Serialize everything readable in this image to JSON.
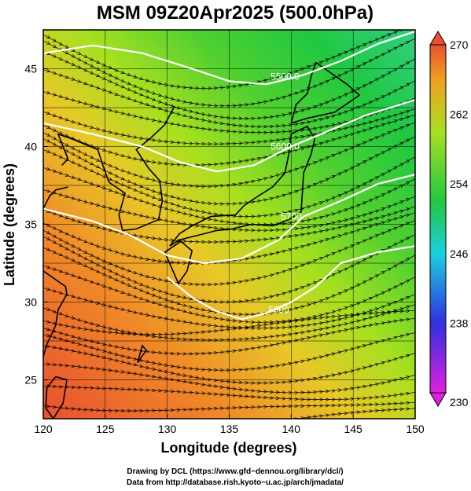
{
  "title": "MSM 09Z20Apr2025 (500.0hPa)",
  "x_axis": {
    "label": "Longitude (degrees)",
    "range": [
      120,
      150
    ],
    "ticks": [
      {
        "value": 120,
        "label": "120"
      },
      {
        "value": 125,
        "label": "125"
      },
      {
        "value": 130,
        "label": "130"
      },
      {
        "value": 135,
        "label": "135"
      },
      {
        "value": 140,
        "label": "140"
      },
      {
        "value": 145,
        "label": "145"
      },
      {
        "value": 150,
        "label": "150"
      }
    ]
  },
  "y_axis": {
    "label": "Latitude  (degrees)",
    "range": [
      22.5,
      47.5
    ],
    "ticks": [
      {
        "value": 25,
        "label": "25"
      },
      {
        "value": 30,
        "label": "30"
      },
      {
        "value": 35,
        "label": "35"
      },
      {
        "value": 40,
        "label": "40"
      },
      {
        "value": 45,
        "label": "45"
      }
    ]
  },
  "colorbar": {
    "range": [
      230,
      270
    ],
    "ticks": [
      {
        "value": 230,
        "label": "230"
      },
      {
        "value": 238,
        "label": "238"
      },
      {
        "value": 246,
        "label": "246"
      },
      {
        "value": 254,
        "label": "254"
      },
      {
        "value": 262,
        "label": "262"
      },
      {
        "value": 270,
        "label": "270"
      }
    ],
    "colors": [
      "#e020e0",
      "#3030e0",
      "#1ad0e0",
      "#20c840",
      "#a8e020",
      "#f0a020",
      "#e85030"
    ]
  },
  "contours": [
    {
      "label": "5500.0",
      "label_lon": 139.5,
      "label_lat": 44.5
    },
    {
      "label": "5600.0",
      "label_lon": 139.5,
      "label_lat": 40.0
    },
    {
      "label": "5700",
      "label_lon": 140.0,
      "label_lat": 35.5
    },
    {
      "label": "5800",
      "label_lon": 139.0,
      "label_lat": 29.5
    }
  ],
  "credits": {
    "line1": "Drawing by DCL (https://www.gfd−dennou.org/library/dcl/)",
    "line2": "Data from http://database.rish.kyoto−u.ac.jp/arch/jmadata/"
  }
}
